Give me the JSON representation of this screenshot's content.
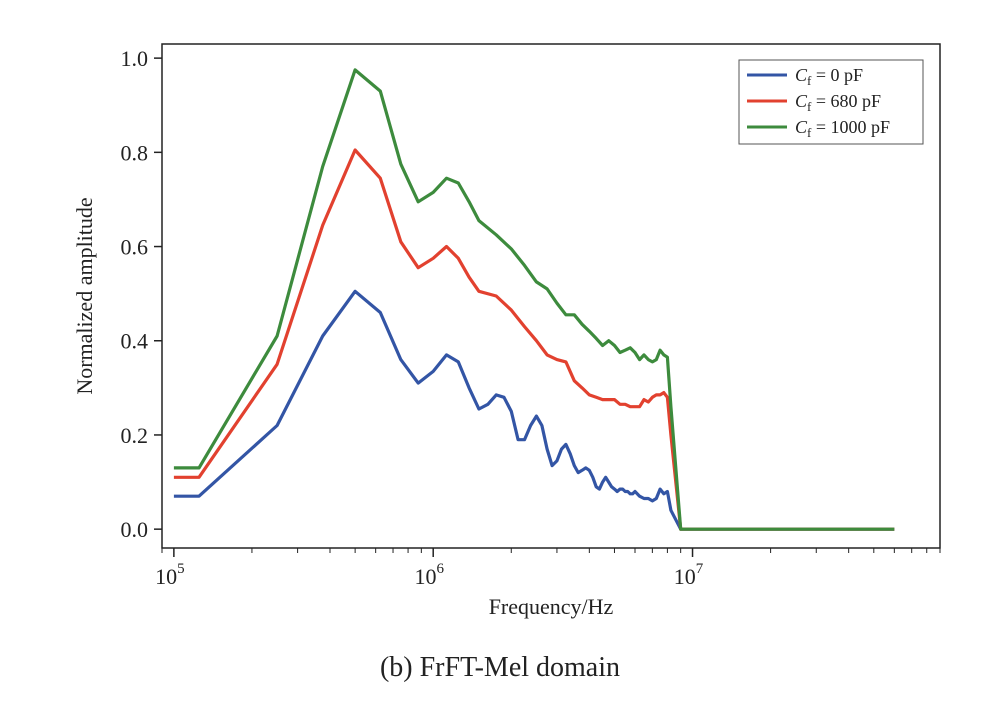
{
  "chart_data": {
    "type": "line",
    "title": "",
    "xlabel": "Frequency/Hz",
    "ylabel": "Normalized amplitude",
    "xscale": "log",
    "xlim": [
      90000,
      90000000
    ],
    "ylim": [
      -0.04,
      1.03
    ],
    "yticks": [
      0.0,
      0.2,
      0.4,
      0.6,
      0.8,
      1.0
    ],
    "ytick_labels": [
      "0.0",
      "0.2",
      "0.4",
      "0.6",
      "0.8",
      "1.0"
    ],
    "xticks": [
      {
        "base": "10",
        "exp": "5",
        "value": 100000
      },
      {
        "base": "10",
        "exp": "6",
        "value": 1000000
      },
      {
        "base": "10",
        "exp": "7",
        "value": 10000000
      }
    ],
    "grid": false,
    "legend_position": "top-right",
    "series": [
      {
        "name_main": "C",
        "name_sub": "f",
        "name_rest": " = 0 pF",
        "color": "#3355a5",
        "x": [
          100000,
          125000,
          250000,
          375000,
          500000,
          625000,
          750000,
          875000,
          1000000,
          1125000,
          1250000,
          1375000,
          1500000,
          1625000,
          1750000,
          1875000,
          2000000,
          2125000,
          2250000,
          2375000,
          2500000,
          2625000,
          2750000,
          2875000,
          3000000,
          3125000,
          3250000,
          3375000,
          3500000,
          3625000,
          3750000,
          3875000,
          4000000,
          4125000,
          4250000,
          4375000,
          4500000,
          4625000,
          4750000,
          4875000,
          5000000,
          5125000,
          5250000,
          5375000,
          5500000,
          5625000,
          5750000,
          5875000,
          6000000,
          6250000,
          6500000,
          6750000,
          7000000,
          7250000,
          7500000,
          7750000,
          8000000,
          8250000,
          9000000,
          10000000,
          20000000,
          40000000,
          60000000
        ],
        "y": [
          0.07,
          0.07,
          0.22,
          0.41,
          0.505,
          0.46,
          0.36,
          0.31,
          0.335,
          0.37,
          0.355,
          0.3,
          0.255,
          0.265,
          0.285,
          0.28,
          0.25,
          0.19,
          0.19,
          0.22,
          0.24,
          0.22,
          0.17,
          0.135,
          0.145,
          0.17,
          0.18,
          0.16,
          0.135,
          0.12,
          0.125,
          0.13,
          0.125,
          0.11,
          0.09,
          0.085,
          0.1,
          0.11,
          0.1,
          0.09,
          0.085,
          0.08,
          0.085,
          0.085,
          0.08,
          0.08,
          0.075,
          0.075,
          0.08,
          0.07,
          0.065,
          0.065,
          0.06,
          0.065,
          0.085,
          0.075,
          0.08,
          0.04,
          0.0,
          0.0,
          0.0,
          0.0,
          0.0
        ]
      },
      {
        "name_main": "C",
        "name_sub": "f",
        "name_rest": " = 680 pF",
        "color": "#e2412f",
        "x": [
          100000,
          125000,
          250000,
          375000,
          500000,
          625000,
          750000,
          875000,
          1000000,
          1125000,
          1250000,
          1375000,
          1500000,
          1750000,
          2000000,
          2250000,
          2500000,
          2750000,
          3000000,
          3250000,
          3500000,
          3750000,
          4000000,
          4250000,
          4500000,
          4750000,
          5000000,
          5250000,
          5500000,
          5750000,
          6000000,
          6250000,
          6500000,
          6750000,
          7000000,
          7250000,
          7500000,
          7750000,
          8000000,
          8250000,
          9000000,
          10000000,
          20000000,
          40000000,
          60000000
        ],
        "y": [
          0.11,
          0.11,
          0.35,
          0.645,
          0.805,
          0.745,
          0.61,
          0.555,
          0.575,
          0.6,
          0.575,
          0.535,
          0.505,
          0.495,
          0.465,
          0.43,
          0.4,
          0.37,
          0.36,
          0.355,
          0.315,
          0.3,
          0.285,
          0.28,
          0.275,
          0.275,
          0.275,
          0.265,
          0.265,
          0.26,
          0.26,
          0.26,
          0.275,
          0.27,
          0.28,
          0.285,
          0.285,
          0.29,
          0.28,
          0.2,
          0.0,
          0.0,
          0.0,
          0.0,
          0.0
        ]
      },
      {
        "name_main": "C",
        "name_sub": "f",
        "name_rest": " = 1000 pF",
        "color": "#3d8b3d",
        "x": [
          100000,
          125000,
          250000,
          375000,
          500000,
          625000,
          750000,
          875000,
          1000000,
          1125000,
          1250000,
          1375000,
          1500000,
          1750000,
          2000000,
          2250000,
          2500000,
          2750000,
          3000000,
          3250000,
          3500000,
          3750000,
          4000000,
          4250000,
          4500000,
          4750000,
          5000000,
          5250000,
          5500000,
          5750000,
          6000000,
          6250000,
          6500000,
          6750000,
          7000000,
          7250000,
          7500000,
          7750000,
          8000000,
          8250000,
          9000000,
          10000000,
          20000000,
          40000000,
          60000000
        ],
        "y": [
          0.13,
          0.13,
          0.41,
          0.77,
          0.975,
          0.93,
          0.775,
          0.695,
          0.715,
          0.745,
          0.735,
          0.695,
          0.655,
          0.625,
          0.595,
          0.56,
          0.525,
          0.51,
          0.48,
          0.455,
          0.455,
          0.435,
          0.42,
          0.405,
          0.39,
          0.4,
          0.39,
          0.375,
          0.38,
          0.385,
          0.375,
          0.36,
          0.37,
          0.36,
          0.355,
          0.36,
          0.38,
          0.37,
          0.365,
          0.26,
          0.0,
          0.0,
          0.0,
          0.0,
          0.0
        ]
      }
    ]
  },
  "caption": "(b) FrFT-Mel domain"
}
